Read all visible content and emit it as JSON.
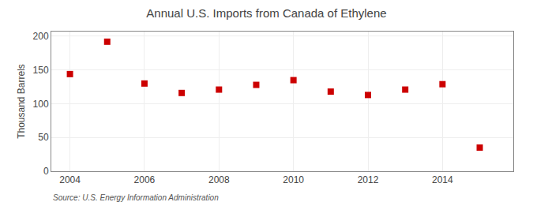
{
  "chart_data": {
    "type": "scatter",
    "title": "Annual U.S. Imports from Canada of Ethylene",
    "ylabel": "Thousand Barrels",
    "annotations": [
      "Source: U.S. Energy Information Administration"
    ],
    "x": [
      2004,
      2005,
      2006,
      2007,
      2008,
      2009,
      2010,
      2011,
      2012,
      2013,
      2014,
      2015
    ],
    "values": [
      144,
      192,
      130,
      116,
      121,
      128,
      135,
      118,
      113,
      121,
      129,
      35
    ],
    "color": "#cc0000",
    "marker": "square",
    "xlim": [
      2003.5,
      2015.9
    ],
    "xticks": [
      2004,
      2006,
      2008,
      2010,
      2012,
      2014
    ],
    "ylim": [
      0,
      207
    ],
    "yticks": [
      0,
      50,
      100,
      150,
      200
    ],
    "grid": true
  }
}
